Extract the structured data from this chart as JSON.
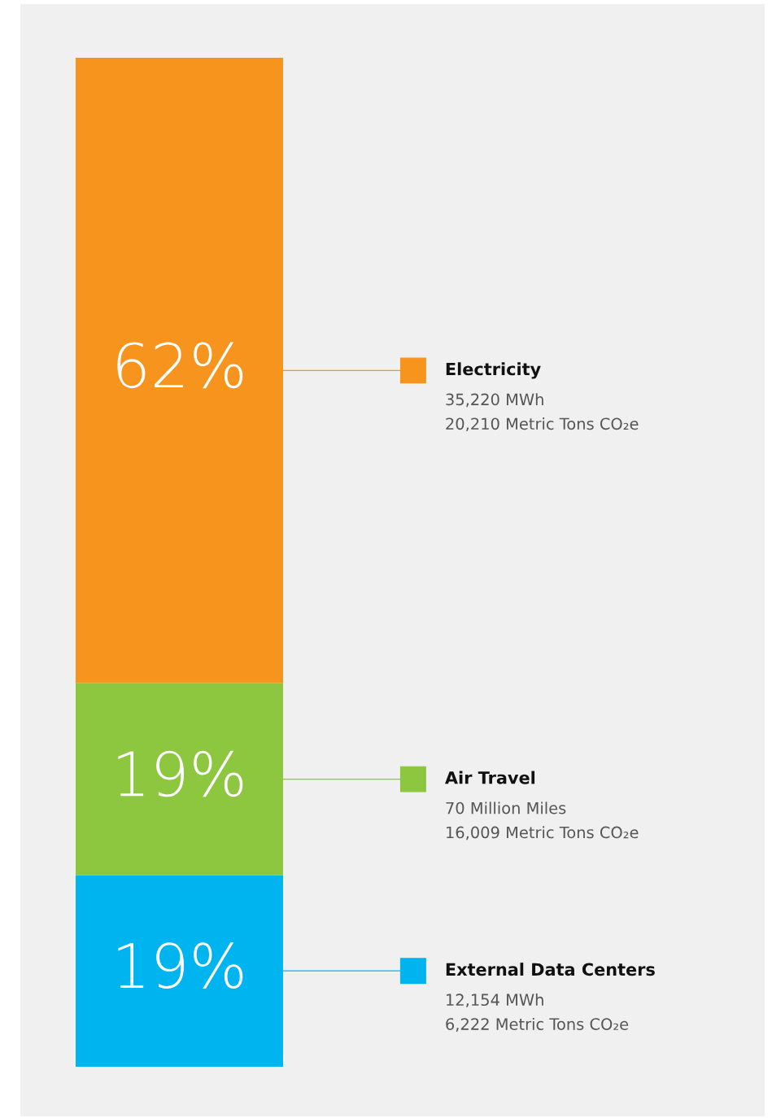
{
  "chart_data": {
    "type": "bar",
    "stacked": true,
    "categories": [
      null
    ],
    "ylim": [
      0,
      100
    ],
    "legend": "right",
    "series": [
      {
        "name": "External Data Centers",
        "color": "#00b5ef",
        "values": [
          19
        ],
        "value_labels": [
          "19%"
        ]
      },
      {
        "name": "Air Travel",
        "color": "#8dc63f",
        "values": [
          19
        ],
        "value_labels": [
          "19%"
        ]
      },
      {
        "name": "Electricity",
        "color": "#f7941d",
        "values": [
          62
        ],
        "value_labels": [
          "62%"
        ]
      }
    ],
    "annotations": [
      "12,154 MWh\n6,222 Metric Tons CO₂e",
      "70 Million Miles\n16,009 Metric Tons CO₂e",
      "35,220 MWh\n20,210 Metric Tons CO₂e"
    ]
  }
}
